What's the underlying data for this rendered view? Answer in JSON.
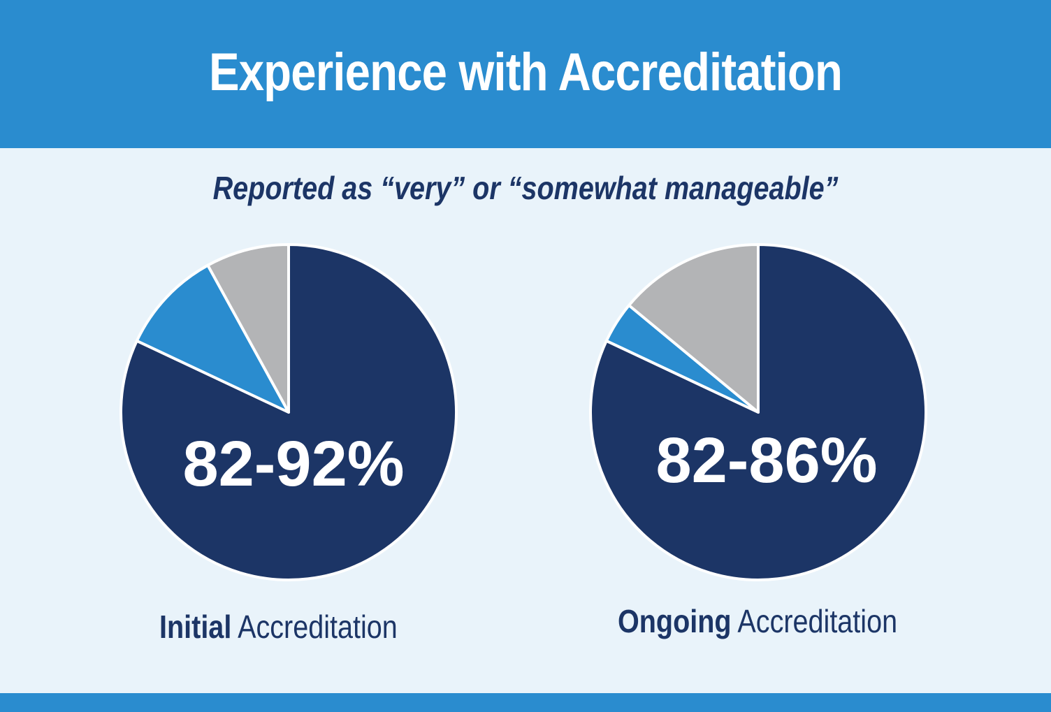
{
  "header": {
    "title": "Experience with Accreditation",
    "subtitle": "Reported as “very” or “somewhat manageable”"
  },
  "colors": {
    "header_band": "#2a8ccf",
    "background": "#e9f3fa",
    "dark_navy": "#1c3566",
    "medium_blue": "#2a8ccf",
    "gray": "#b3b4b6",
    "separator": "#ffffff"
  },
  "chart_data": [
    {
      "type": "pie",
      "value_label": "82-92%",
      "label_bold": "Initial",
      "label_regular": " Accreditation",
      "slices": [
        {
          "value": 82,
          "color": "#1c3566"
        },
        {
          "value": 10,
          "color": "#2a8ccf"
        },
        {
          "value": 8,
          "color": "#b3b4b6"
        }
      ]
    },
    {
      "type": "pie",
      "value_label": "82-86%",
      "label_bold": "Ongoing",
      "label_regular": " Accreditation",
      "slices": [
        {
          "value": 82,
          "color": "#1c3566"
        },
        {
          "value": 4,
          "color": "#2a8ccf"
        },
        {
          "value": 14,
          "color": "#b3b4b6"
        }
      ]
    }
  ]
}
